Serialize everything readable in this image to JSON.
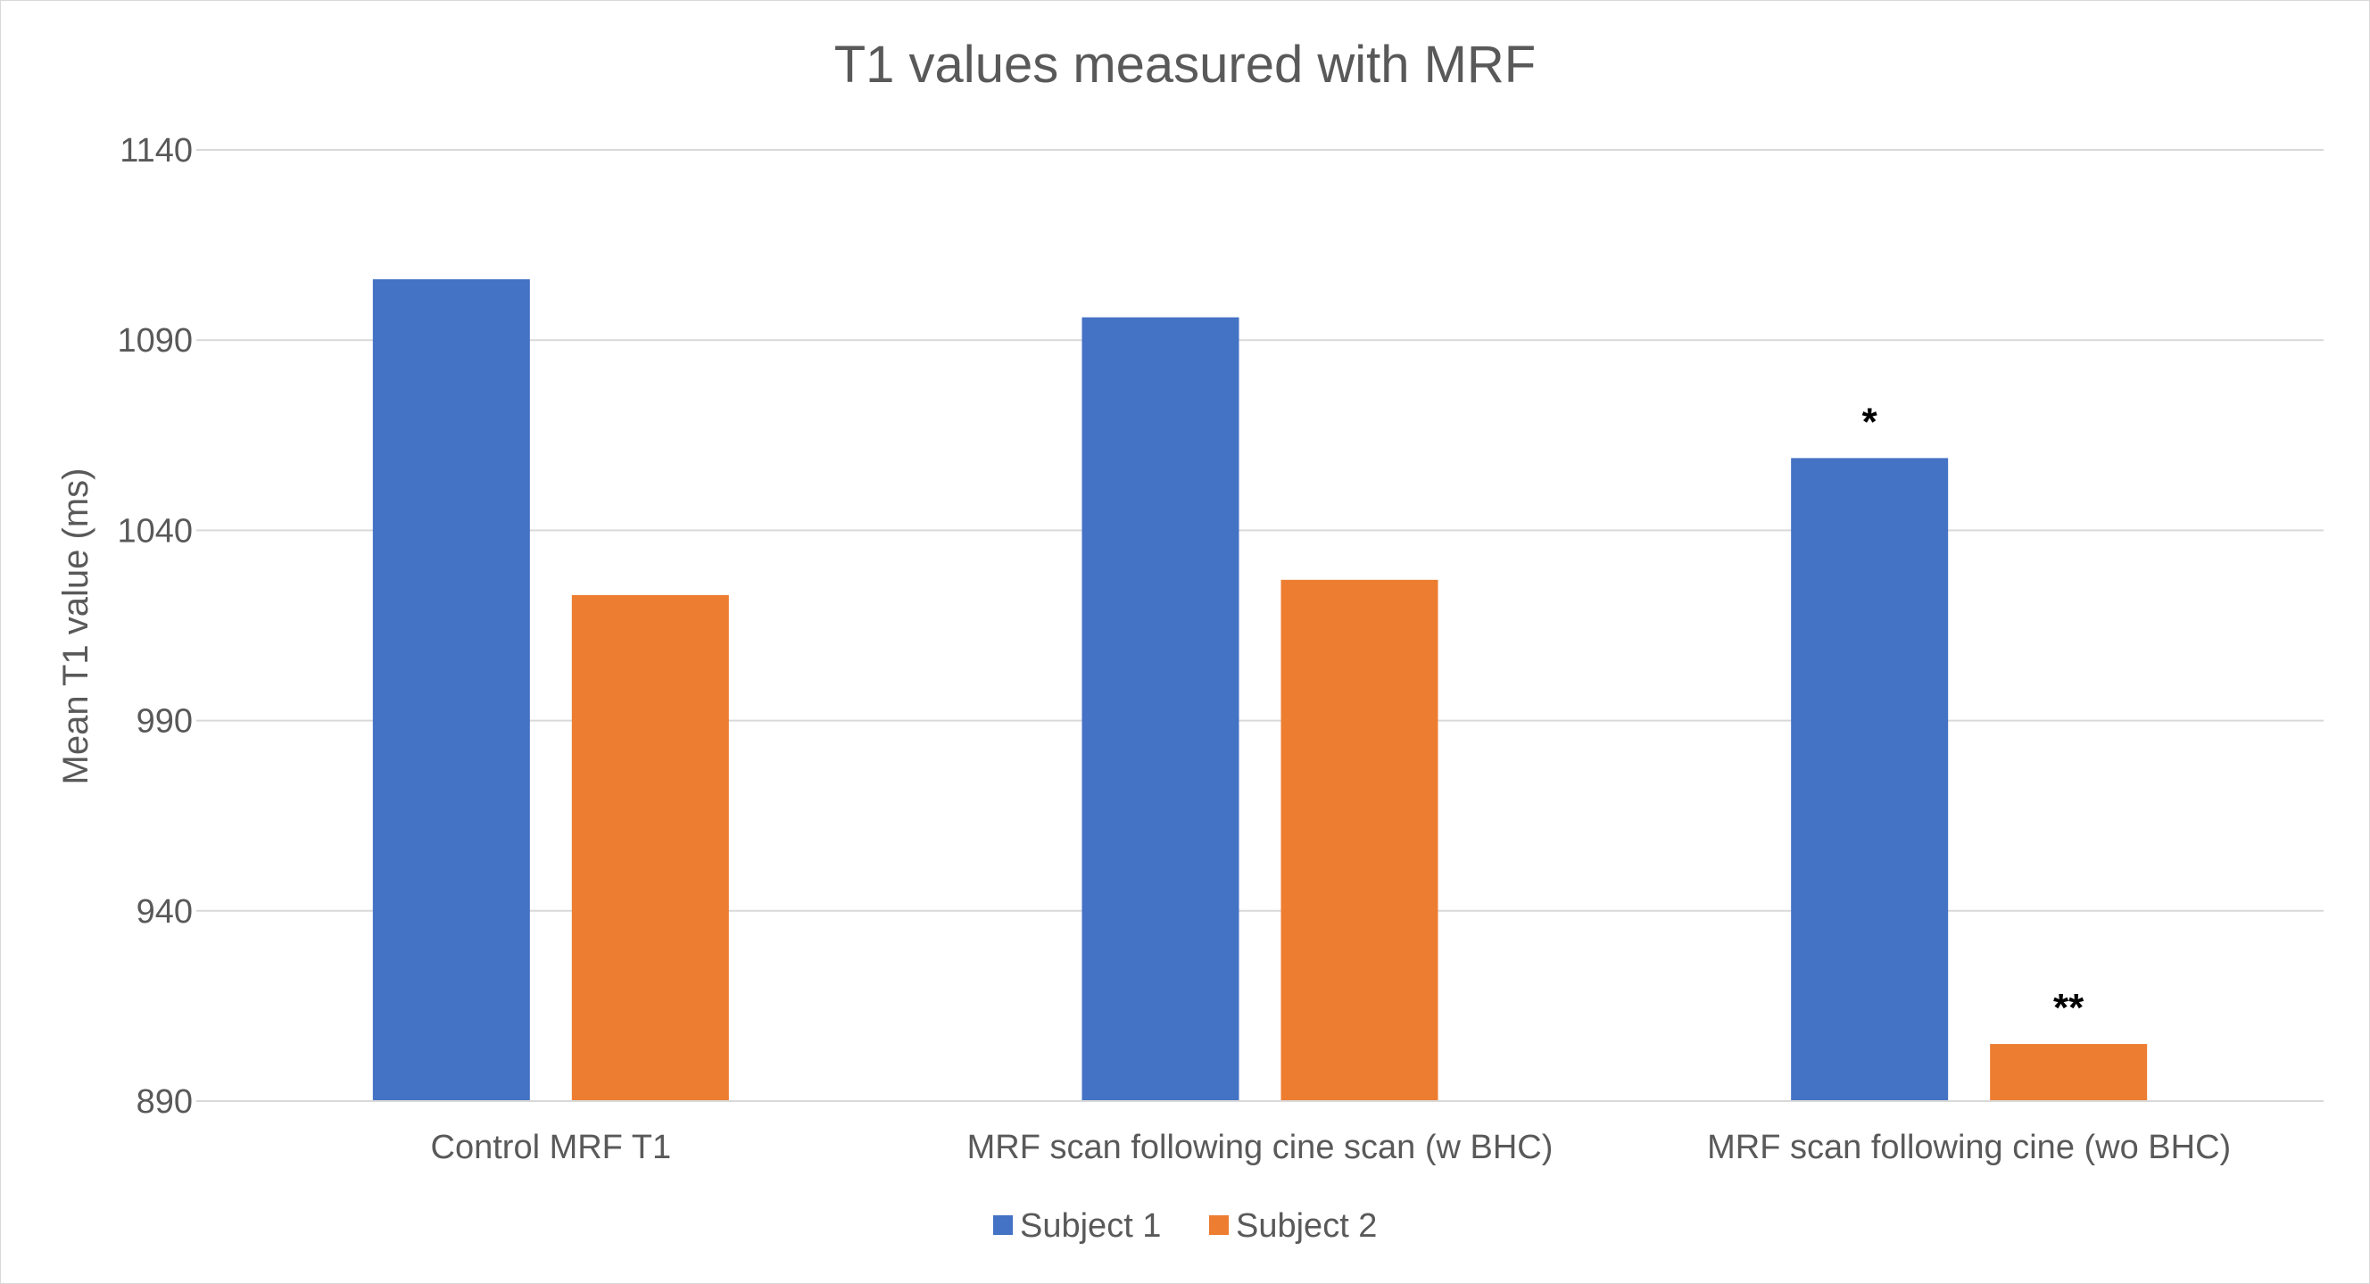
{
  "chart_data": {
    "type": "bar",
    "title": "T1 values measured with MRF",
    "xlabel": "",
    "ylabel": "Mean T1 value (ms)",
    "ylim": [
      890,
      1140
    ],
    "yticks": [
      890,
      940,
      990,
      1040,
      1090,
      1140
    ],
    "grid": true,
    "legend_position": "bottom",
    "categories": [
      "Control MRF T1",
      "MRF scan following cine scan (w BHC)",
      "MRF scan following cine (wo BHC)"
    ],
    "series": [
      {
        "name": "Subject 1",
        "color": "#4472c4",
        "values": [
          1106,
          1096,
          1059
        ],
        "annotations": [
          "",
          "",
          "*"
        ]
      },
      {
        "name": "Subject 2",
        "color": "#ed7d31",
        "values": [
          1023,
          1027,
          905
        ],
        "annotations": [
          "",
          "",
          "**"
        ]
      }
    ]
  }
}
